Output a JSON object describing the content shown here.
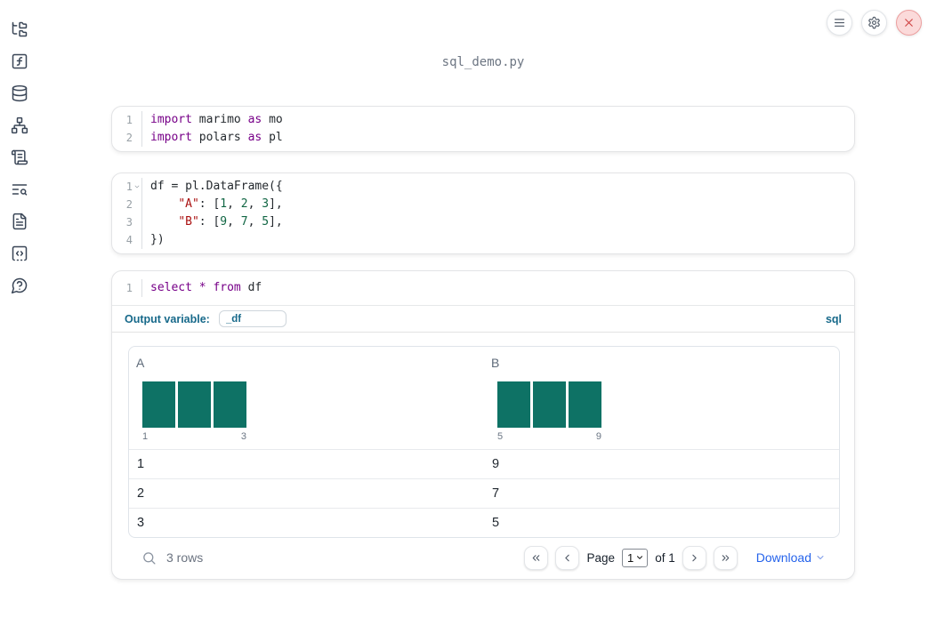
{
  "app": {
    "filename": "sql_demo.py"
  },
  "topbar": {
    "buttons": [
      "menu",
      "settings",
      "shutdown"
    ]
  },
  "sidebar": {
    "icons": [
      "file-tree",
      "functions",
      "datasources",
      "dependency-graph",
      "scratchpad",
      "table-of-contents",
      "documentation",
      "snippets",
      "help"
    ]
  },
  "cells": [
    {
      "name": "imports",
      "lines": [
        {
          "n": "1",
          "fold": false,
          "tokens": [
            [
              "kw",
              "import"
            ],
            [
              "pl",
              " marimo "
            ],
            [
              "kw",
              "as"
            ],
            [
              "pl",
              " mo"
            ]
          ]
        },
        {
          "n": "2",
          "fold": false,
          "tokens": [
            [
              "kw",
              "import"
            ],
            [
              "pl",
              " polars "
            ],
            [
              "kw",
              "as"
            ],
            [
              "pl",
              " pl"
            ]
          ]
        }
      ]
    },
    {
      "name": "dataframe",
      "lines": [
        {
          "n": "1",
          "fold": true,
          "tokens": [
            [
              "pl",
              "df = pl.DataFrame({"
            ]
          ]
        },
        {
          "n": "2",
          "fold": false,
          "tokens": [
            [
              "pl",
              "    "
            ],
            [
              "str",
              "\"A\""
            ],
            [
              "pl",
              ": ["
            ],
            [
              "num",
              "1"
            ],
            [
              "pl",
              ", "
            ],
            [
              "num",
              "2"
            ],
            [
              "pl",
              ", "
            ],
            [
              "num",
              "3"
            ],
            [
              "pl",
              "],"
            ]
          ]
        },
        {
          "n": "3",
          "fold": false,
          "tokens": [
            [
              "pl",
              "    "
            ],
            [
              "str",
              "\"B\""
            ],
            [
              "pl",
              ": ["
            ],
            [
              "num",
              "9"
            ],
            [
              "pl",
              ", "
            ],
            [
              "num",
              "7"
            ],
            [
              "pl",
              ", "
            ],
            [
              "num",
              "5"
            ],
            [
              "pl",
              "],"
            ]
          ]
        },
        {
          "n": "4",
          "fold": false,
          "tokens": [
            [
              "pl",
              "})"
            ]
          ]
        }
      ]
    },
    {
      "name": "sql",
      "lines": [
        {
          "n": "1",
          "fold": false,
          "tokens": [
            [
              "kw",
              "select"
            ],
            [
              "pl",
              " "
            ],
            [
              "kw",
              "*"
            ],
            [
              "pl",
              " "
            ],
            [
              "kw",
              "from"
            ],
            [
              "pl",
              " df"
            ]
          ]
        }
      ],
      "output_variable": {
        "label": "Output variable:",
        "value": "_df"
      },
      "language": "sql"
    }
  ],
  "table": {
    "columns": [
      {
        "name": "A",
        "hist": {
          "values": [
            1,
            1,
            1
          ],
          "min_label": "1",
          "max_label": "3"
        }
      },
      {
        "name": "B",
        "hist": {
          "values": [
            1,
            1,
            1
          ],
          "min_label": "5",
          "max_label": "9"
        }
      }
    ],
    "rows": [
      [
        "1",
        "9"
      ],
      [
        "2",
        "7"
      ],
      [
        "3",
        "5"
      ]
    ],
    "footer": {
      "row_count": "3 rows",
      "page_label": "Page",
      "page_value": "1",
      "of_label": "of 1",
      "download_label": "Download"
    }
  },
  "colors": {
    "keyword": "#770088",
    "string": "#aa1111",
    "number": "#116644",
    "histogram_bar": "#0e7265",
    "accent": "#17698a",
    "link": "#2563eb",
    "close": "#cf4444"
  }
}
